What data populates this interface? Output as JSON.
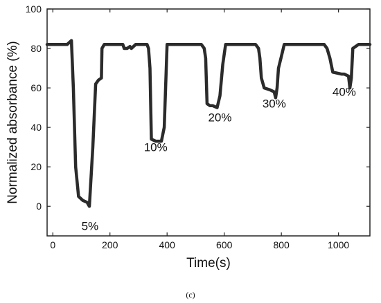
{
  "chart_data": {
    "type": "line",
    "xlabel": "Time(s)",
    "ylabel": "Normalized absorbance (%)",
    "xlim": [
      -20,
      1110
    ],
    "ylim": [
      -15,
      100
    ],
    "xticks": [
      0,
      200,
      400,
      600,
      800,
      1000
    ],
    "yticks": [
      0,
      20,
      40,
      60,
      80,
      100
    ],
    "xtick_labels": [
      "0",
      "200",
      "400",
      "600",
      "800",
      "1000"
    ],
    "ytick_labels": [
      "0",
      "20",
      "40",
      "60",
      "80",
      "100"
    ],
    "grid": false,
    "line_color": "#2b2b2b",
    "series": [
      {
        "x": [
          -20,
          50,
          65,
          72,
          80,
          90,
          105,
          120,
          128,
          140,
          150,
          160,
          170,
          172,
          180,
          200,
          220,
          245,
          250,
          260,
          270,
          275,
          290,
          300,
          315,
          330,
          335,
          340,
          345,
          360,
          370,
          380,
          390,
          400,
          420,
          450,
          480,
          500,
          520,
          530,
          535,
          540,
          550,
          560,
          575,
          585,
          595,
          605,
          620,
          650,
          690,
          710,
          720,
          725,
          730,
          740,
          760,
          775,
          780,
          785,
          790,
          800,
          810,
          830,
          850,
          900,
          950,
          960,
          970,
          980,
          1010,
          1020,
          1035,
          1040,
          1045,
          1050,
          1070,
          1110
        ],
        "y": [
          82,
          82,
          84,
          60,
          20,
          5,
          3,
          2,
          0,
          30,
          62,
          64,
          65,
          80,
          82,
          82,
          82,
          82,
          80,
          80,
          81,
          80,
          82,
          82,
          82,
          82,
          80,
          70,
          34,
          33,
          33,
          33,
          40,
          82,
          82,
          82,
          82,
          82,
          82,
          80,
          75,
          52,
          51,
          51,
          50,
          56,
          72,
          82,
          82,
          82,
          82,
          82,
          80,
          75,
          65,
          60,
          59,
          58,
          55,
          60,
          70,
          76,
          82,
          82,
          82,
          82,
          82,
          80,
          75,
          68,
          67,
          67,
          66,
          60,
          65,
          80,
          82,
          82
        ]
      }
    ],
    "annotations": [
      {
        "text": "5%",
        "x": 130,
        "y": -12
      },
      {
        "text": "10%",
        "x": 360,
        "y": 28
      },
      {
        "text": "20%",
        "x": 585,
        "y": 43
      },
      {
        "text": "30%",
        "x": 775,
        "y": 50
      },
      {
        "text": "40%",
        "x": 1020,
        "y": 56
      }
    ]
  },
  "caption": "(c)"
}
